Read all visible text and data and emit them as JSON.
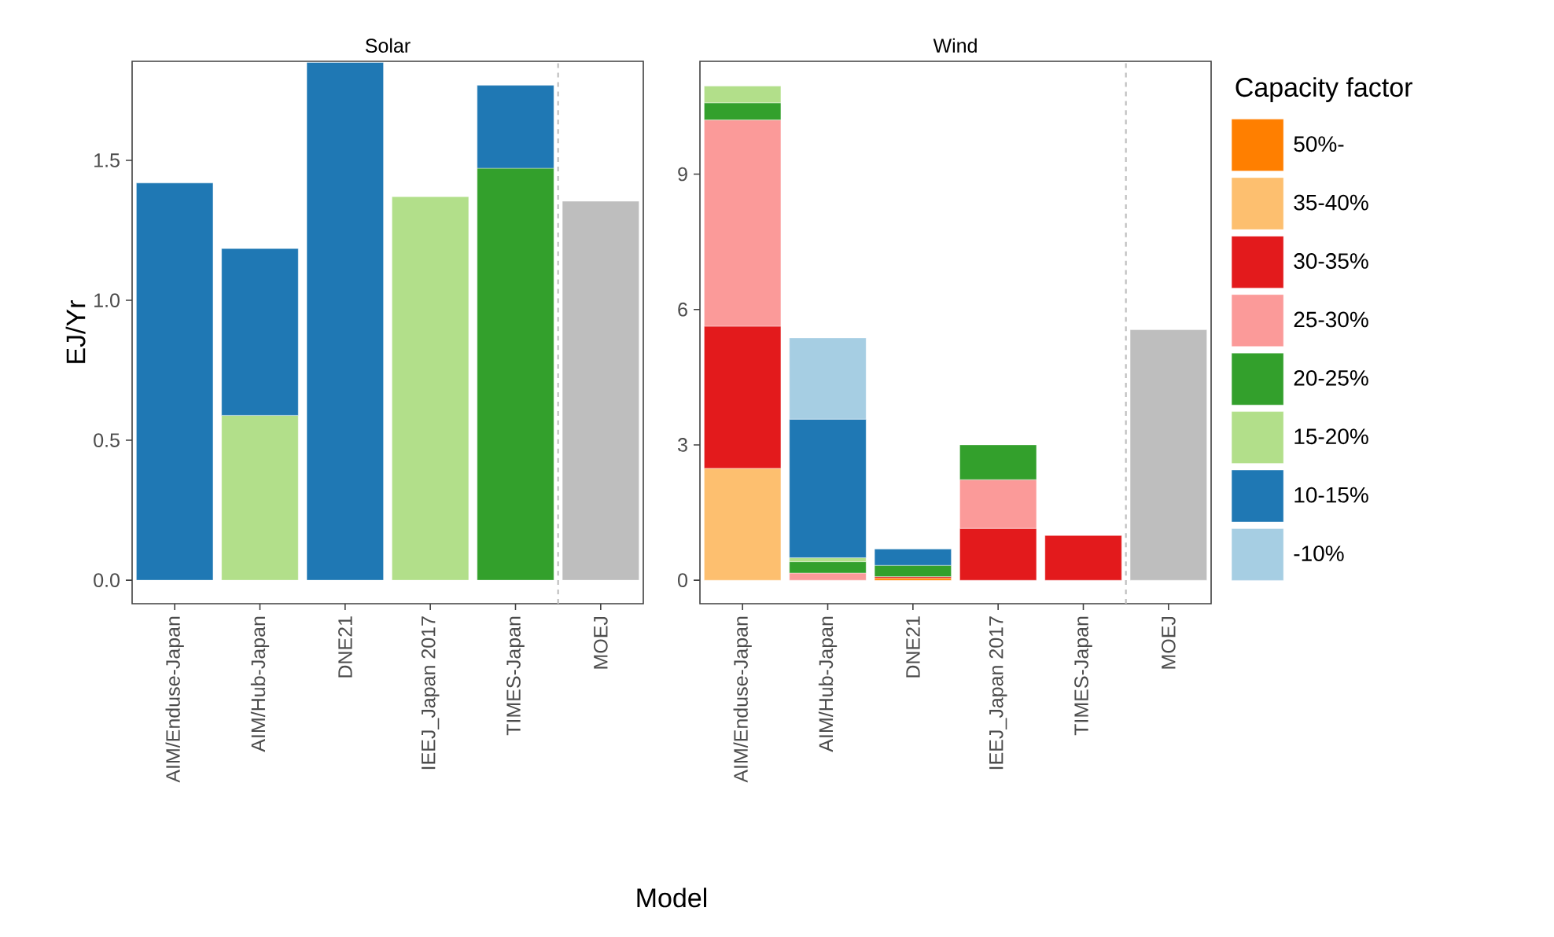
{
  "chart_data": [
    {
      "type": "bar",
      "stacked": true,
      "title": "Solar",
      "xlabel": "Model",
      "ylabel": "EJ/Yr",
      "categories": [
        "AIM/Enduse-Japan",
        "AIM/Hub-Japan",
        "DNE21",
        "IEEJ_Japan 2017",
        "TIMES-Japan",
        "MOEJ"
      ],
      "ylim": [
        -0.084,
        1.854
      ],
      "yticks": [
        {
          "value": 0,
          "label": "0.0"
        },
        {
          "value": 0.5,
          "label": "0.5"
        },
        {
          "value": 1,
          "label": "1.0"
        },
        {
          "value": 1.5,
          "label": "1.5"
        }
      ],
      "grid": false,
      "series": [
        {
          "color": "#33a02c",
          "values": [
            null,
            null,
            null,
            null,
            1.472,
            null
          ]
        },
        {
          "color": "#b2df8a",
          "values": [
            null,
            0.589,
            null,
            1.37,
            null,
            null
          ]
        },
        {
          "color": "#1f78b4",
          "values": [
            1.419,
            0.596,
            1.85,
            null,
            0.296,
            null
          ]
        },
        {
          "color": "#bebebe",
          "values": [
            null,
            null,
            null,
            null,
            null,
            1.354
          ]
        }
      ]
    },
    {
      "type": "bar",
      "stacked": true,
      "title": "Wind",
      "categories": [
        "AIM/Enduse-Japan",
        "AIM/Hub-Japan",
        "DNE21",
        "IEEJ_Japan 2017",
        "TIMES-Japan",
        "MOEJ"
      ],
      "ylim": [
        -0.52,
        11.5
      ],
      "yticks": [
        0,
        3,
        6,
        9
      ],
      "grid": false,
      "legend": "right",
      "legend_title": "Capacity factor",
      "series": [
        {
          "name": "50%-",
          "color": "#ff7f00",
          "values": [
            null,
            null,
            0.05,
            null,
            null,
            null
          ]
        },
        {
          "name": "35-40%",
          "color": "#fdbf6f",
          "values": [
            2.48,
            null,
            null,
            null,
            null,
            null
          ]
        },
        {
          "name": "30-35%",
          "color": "#e31a1c",
          "values": [
            3.15,
            null,
            0.03,
            1.15,
            0.99,
            null
          ]
        },
        {
          "name": "25-30%",
          "color": "#fb9a99",
          "values": [
            4.57,
            0.16,
            null,
            1.08,
            null,
            null
          ]
        },
        {
          "name": "20-25%",
          "color": "#33a02c",
          "values": [
            0.38,
            0.25,
            0.25,
            0.77,
            null,
            null
          ]
        },
        {
          "name": "15-20%",
          "color": "#b2df8a",
          "values": [
            0.37,
            0.09,
            null,
            null,
            null,
            null
          ]
        },
        {
          "name": "10-15%",
          "color": "#1f78b4",
          "values": [
            null,
            3.07,
            0.36,
            null,
            null,
            null
          ]
        },
        {
          "name": "-10%",
          "color": "#a6cee3",
          "values": [
            null,
            1.8,
            null,
            null,
            null,
            null
          ]
        },
        {
          "color": "#bebebe",
          "values": [
            null,
            null,
            null,
            null,
            null,
            5.55
          ]
        }
      ]
    }
  ]
}
